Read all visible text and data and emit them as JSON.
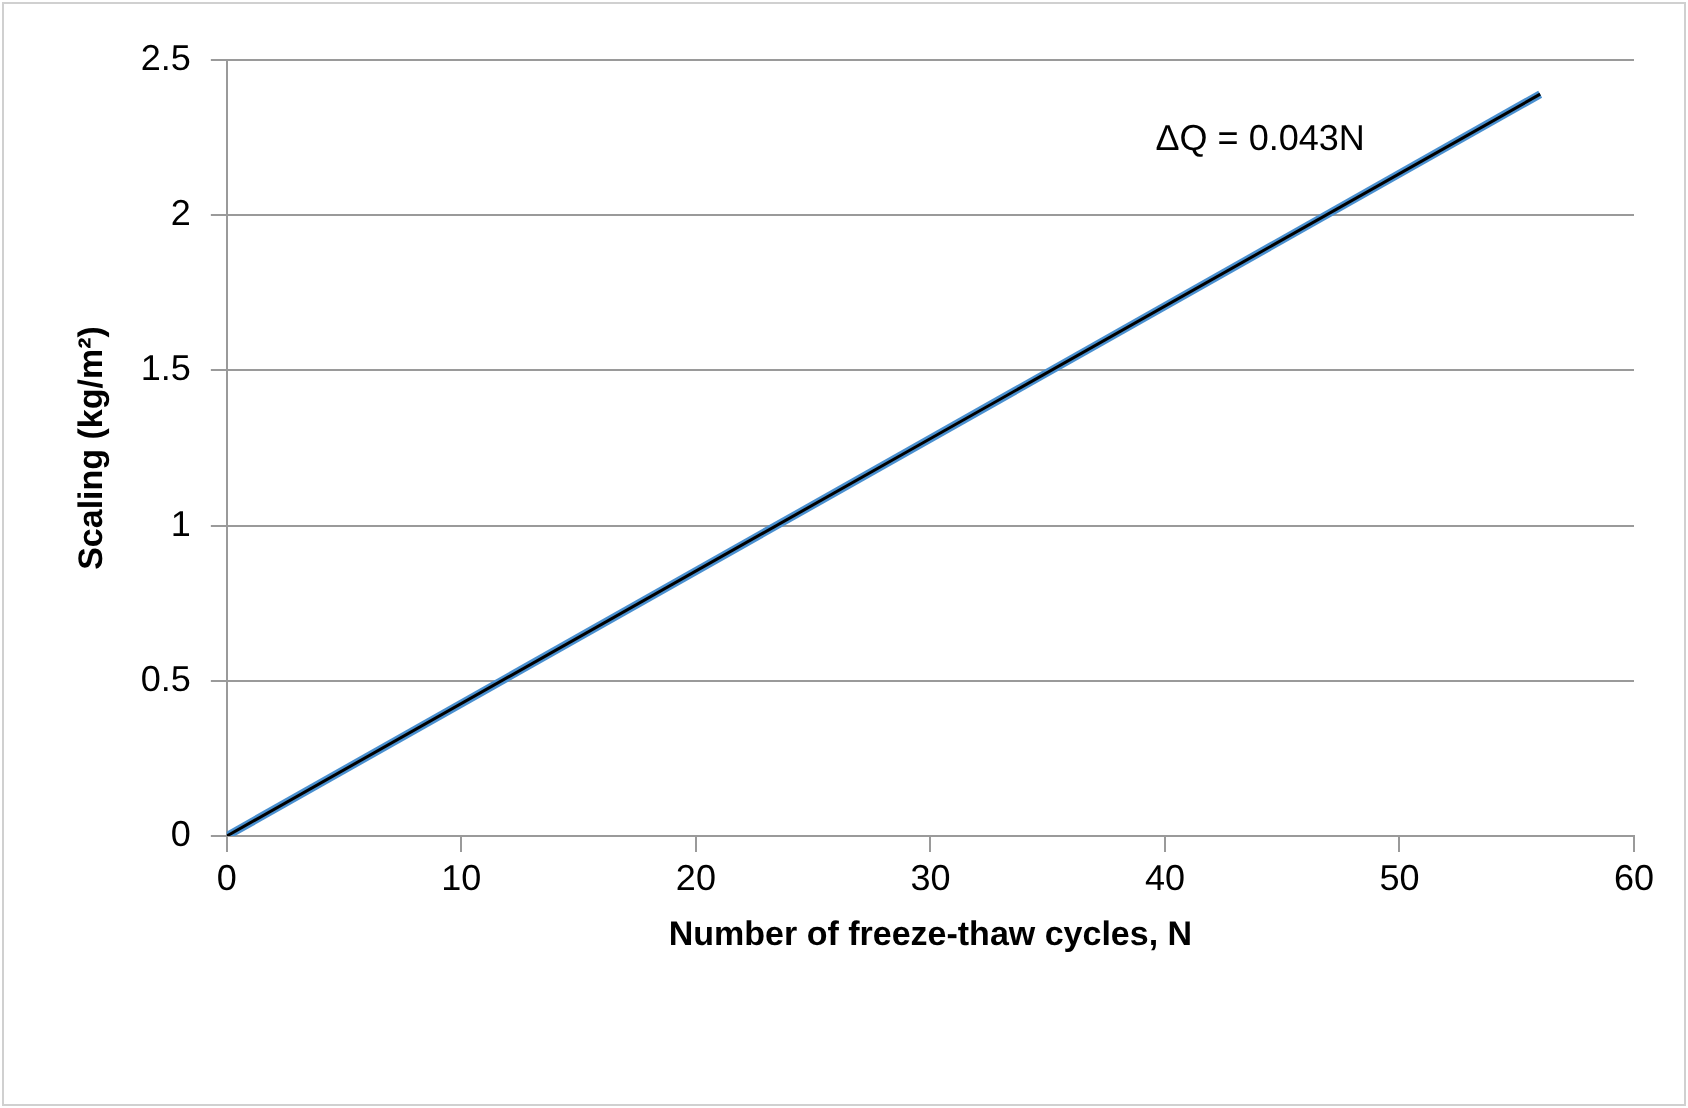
{
  "chart_data": {
    "type": "line",
    "xlabel": "Number of freeze-thaw cycles, N",
    "ylabel": "Scaling (kg/m²)",
    "x": [
      0,
      56
    ],
    "series": [
      {
        "color": "#4a90d0",
        "values": [
          0,
          2.39
        ]
      },
      {
        "color": "#000000",
        "values": [
          0,
          2.39
        ]
      }
    ],
    "xlim": [
      0,
      60
    ],
    "xticks": [
      0,
      10,
      20,
      30,
      40,
      50,
      60
    ],
    "ylim": [
      0,
      2.5
    ],
    "yticks": [
      0,
      0.5,
      1,
      1.5,
      2,
      2.5
    ],
    "grid": "y",
    "legend": false,
    "marker": "none",
    "line_style": "solid",
    "annotations": [
      "ΔQ = 0.043N"
    ]
  }
}
